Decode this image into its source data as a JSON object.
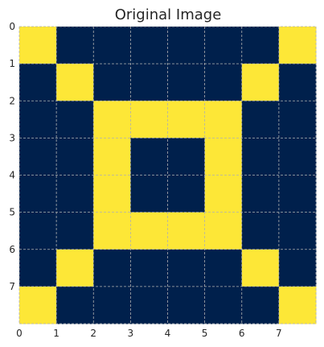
{
  "chart_data": {
    "type": "heatmap",
    "title": "Original Image",
    "xlabel": "",
    "ylabel": "",
    "x_ticks": [
      "0",
      "1",
      "2",
      "3",
      "4",
      "5",
      "6",
      "7"
    ],
    "y_ticks": [
      "0",
      "1",
      "2",
      "3",
      "4",
      "5",
      "6",
      "7"
    ],
    "xlim": [
      0,
      8
    ],
    "ylim": [
      0,
      8
    ],
    "y_direction": "down",
    "grid": true,
    "colors": {
      "0": "#00204c",
      "1": "#fde737"
    },
    "matrix": [
      [
        1,
        0,
        0,
        0,
        0,
        0,
        0,
        1
      ],
      [
        0,
        1,
        0,
        0,
        0,
        0,
        1,
        0
      ],
      [
        0,
        0,
        1,
        1,
        1,
        1,
        0,
        0
      ],
      [
        0,
        0,
        1,
        0,
        0,
        1,
        0,
        0
      ],
      [
        0,
        0,
        1,
        0,
        0,
        1,
        0,
        0
      ],
      [
        0,
        0,
        1,
        1,
        1,
        1,
        0,
        0
      ],
      [
        0,
        1,
        0,
        0,
        0,
        0,
        1,
        0
      ],
      [
        1,
        0,
        0,
        0,
        0,
        0,
        0,
        1
      ]
    ]
  }
}
